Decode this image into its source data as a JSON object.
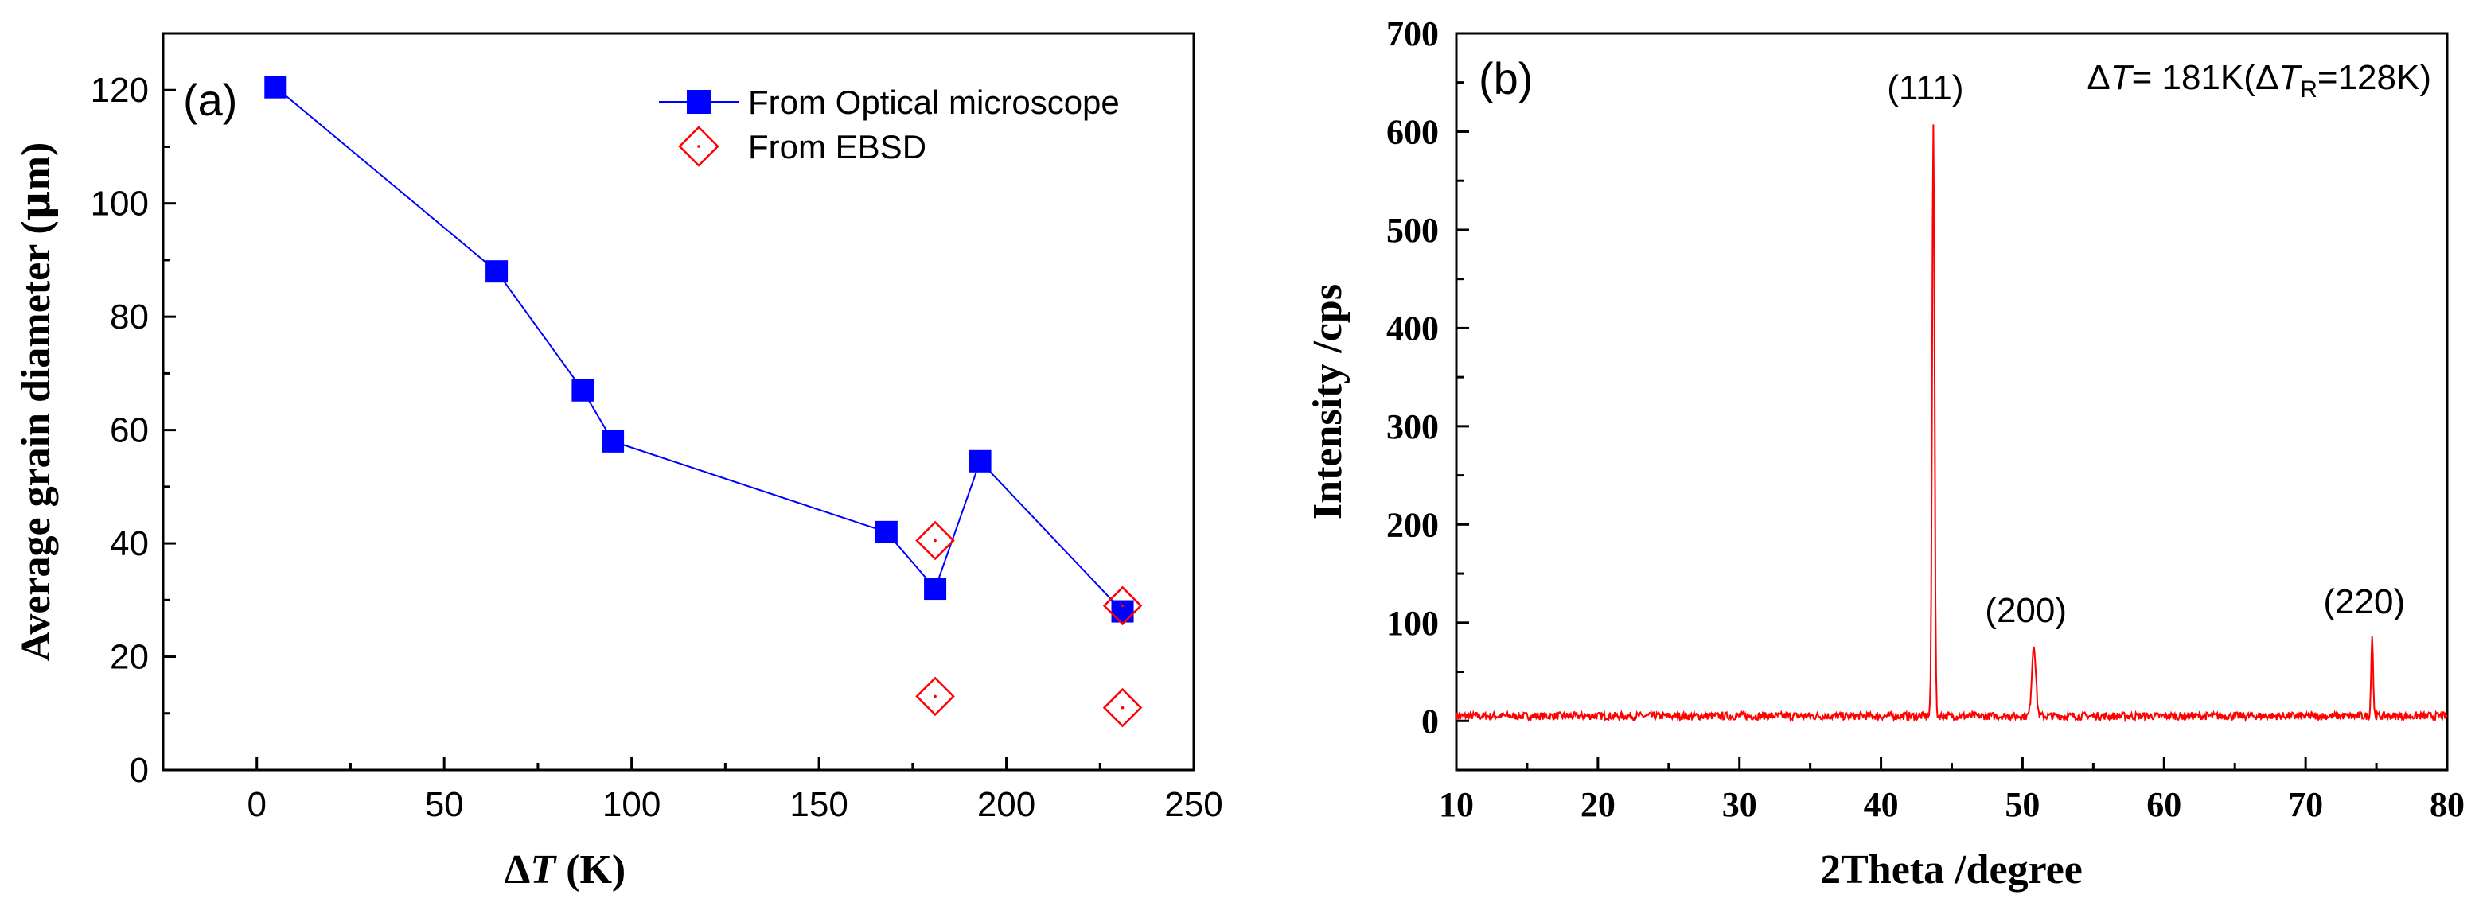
{
  "chart_data": [
    {
      "type": "scatter",
      "panel_label": "(a)",
      "xlabel": "ΔT (K)",
      "ylabel": "Average grain diameter (μm)",
      "xlim": [
        -25,
        250
      ],
      "ylim": [
        0,
        130
      ],
      "xticks": [
        0,
        50,
        100,
        150,
        200,
        250
      ],
      "yticks": [
        0,
        20,
        40,
        60,
        80,
        100,
        120
      ],
      "grid": false,
      "legend_position": "top-right",
      "series": [
        {
          "name": "From Optical microscope",
          "marker": "filled-square",
          "line": true,
          "color": "#0000ff",
          "x": [
            5,
            64,
            87,
            95,
            168,
            181,
            193,
            231
          ],
          "y": [
            120.5,
            88,
            67,
            58,
            42,
            32,
            54.5,
            28
          ]
        },
        {
          "name": "From EBSD",
          "marker": "open-diamond",
          "line": false,
          "color": "#ff0000",
          "x": [
            181,
            181,
            231,
            231
          ],
          "y": [
            40.5,
            13,
            29,
            11
          ]
        }
      ]
    },
    {
      "type": "line",
      "panel_label": "(b)",
      "xlabel": "2Theta /degree",
      "ylabel": "Intensity /cps",
      "xlim": [
        10,
        80
      ],
      "ylim": [
        -50,
        700
      ],
      "xticks": [
        10,
        20,
        30,
        40,
        50,
        60,
        70,
        80
      ],
      "yticks": [
        0,
        100,
        200,
        300,
        400,
        500,
        600,
        700
      ],
      "grid": false,
      "color": "#ff0000",
      "annotation": {
        "delta": "Δ",
        "t_symbol": "T",
        "value_text": "= 181K(",
        "tr_sub": "R",
        "tr_value": "=128K)"
      },
      "peaks": [
        {
          "label": "(111)",
          "x": 43.7,
          "y": 610,
          "width": 0.12
        },
        {
          "label": "(200)",
          "x": 50.8,
          "y": 78,
          "width": 0.2
        },
        {
          "label": "(220)",
          "x": 74.7,
          "y": 87,
          "width": 0.1
        }
      ],
      "baseline": 5,
      "noise_amplitude": 4
    }
  ]
}
